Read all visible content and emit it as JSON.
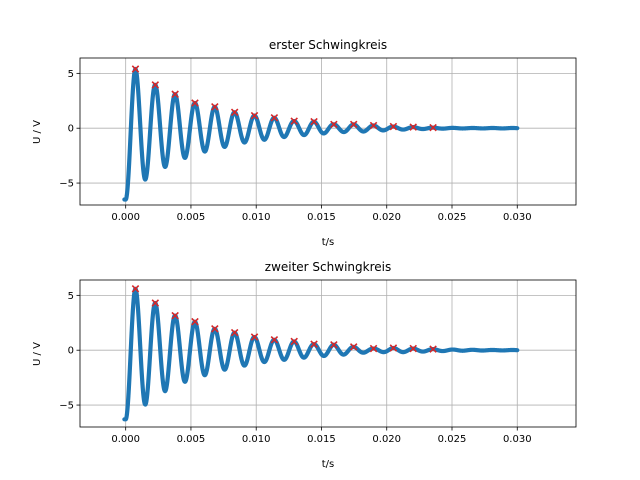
{
  "chart_data": [
    {
      "type": "scatter",
      "title": "erster Schwingkreis",
      "xlabel": "t/s",
      "ylabel": "U / V",
      "xlim": [
        -0.0035,
        0.0345
      ],
      "ylim": [
        -7,
        6.4
      ],
      "xticks": [
        0.0,
        0.005,
        0.01,
        0.015,
        0.02,
        0.025,
        0.03
      ],
      "xtick_labels": [
        "0.000",
        "0.005",
        "0.010",
        "0.015",
        "0.020",
        "0.025",
        "0.030"
      ],
      "yticks": [
        -5,
        0,
        5
      ],
      "ytick_labels": [
        "−5",
        "0",
        "5"
      ],
      "grid": true,
      "signal": {
        "t_start": -0.0001,
        "t_end": 0.03,
        "initial": -6.5,
        "amplitude": 5.6,
        "period": 0.00152,
        "peak_times": [
          0.00075,
          0.00227,
          0.00379,
          0.00531,
          0.00683,
          0.00835,
          0.00987,
          0.01139,
          0.01291,
          0.01443,
          0.01595,
          0.01747,
          0.01899,
          0.02051,
          0.02203,
          0.02355
        ],
        "color": "#1f77b4"
      },
      "peaks": {
        "x": [
          0.00075,
          0.00227,
          0.00379,
          0.00531,
          0.00683,
          0.00835,
          0.00987,
          0.01139,
          0.01291,
          0.01443,
          0.01595,
          0.01747,
          0.01899,
          0.02051,
          0.02203,
          0.02355
        ],
        "y": [
          5.4,
          3.95,
          3.1,
          2.3,
          1.95,
          1.45,
          1.15,
          0.95,
          0.65,
          0.6,
          0.35,
          0.35,
          0.25,
          0.15,
          0.1,
          0.05
        ],
        "marker": "x",
        "color": "#d62728"
      }
    },
    {
      "type": "scatter",
      "title": "zweiter Schwingkreis",
      "xlabel": "t/s",
      "ylabel": "U / V",
      "xlim": [
        -0.0035,
        0.0345
      ],
      "ylim": [
        -7,
        6.4
      ],
      "xticks": [
        0.0,
        0.005,
        0.01,
        0.015,
        0.02,
        0.025,
        0.03
      ],
      "xtick_labels": [
        "0.000",
        "0.005",
        "0.010",
        "0.015",
        "0.020",
        "0.025",
        "0.030"
      ],
      "yticks": [
        -5,
        0,
        5
      ],
      "ytick_labels": [
        "−5",
        "0",
        "5"
      ],
      "grid": true,
      "signal": {
        "t_start": -0.0001,
        "t_end": 0.03,
        "initial": -6.3,
        "amplitude": 5.7,
        "period": 0.00152,
        "peak_times": [
          0.00075,
          0.00227,
          0.00379,
          0.00531,
          0.00683,
          0.00835,
          0.00987,
          0.01139,
          0.01291,
          0.01443,
          0.01595,
          0.01747,
          0.01899,
          0.02051,
          0.02203,
          0.02355
        ],
        "color": "#1f77b4"
      },
      "peaks": {
        "x": [
          0.00075,
          0.00227,
          0.00379,
          0.00531,
          0.00683,
          0.00835,
          0.00987,
          0.01139,
          0.01291,
          0.01443,
          0.01595,
          0.01747,
          0.01899,
          0.02051,
          0.02203,
          0.02355
        ],
        "y": [
          5.6,
          4.3,
          3.15,
          2.6,
          1.95,
          1.6,
          1.2,
          0.95,
          0.8,
          0.55,
          0.5,
          0.3,
          0.15,
          0.2,
          0.15,
          0.1
        ],
        "marker": "x",
        "color": "#d62728"
      }
    }
  ]
}
